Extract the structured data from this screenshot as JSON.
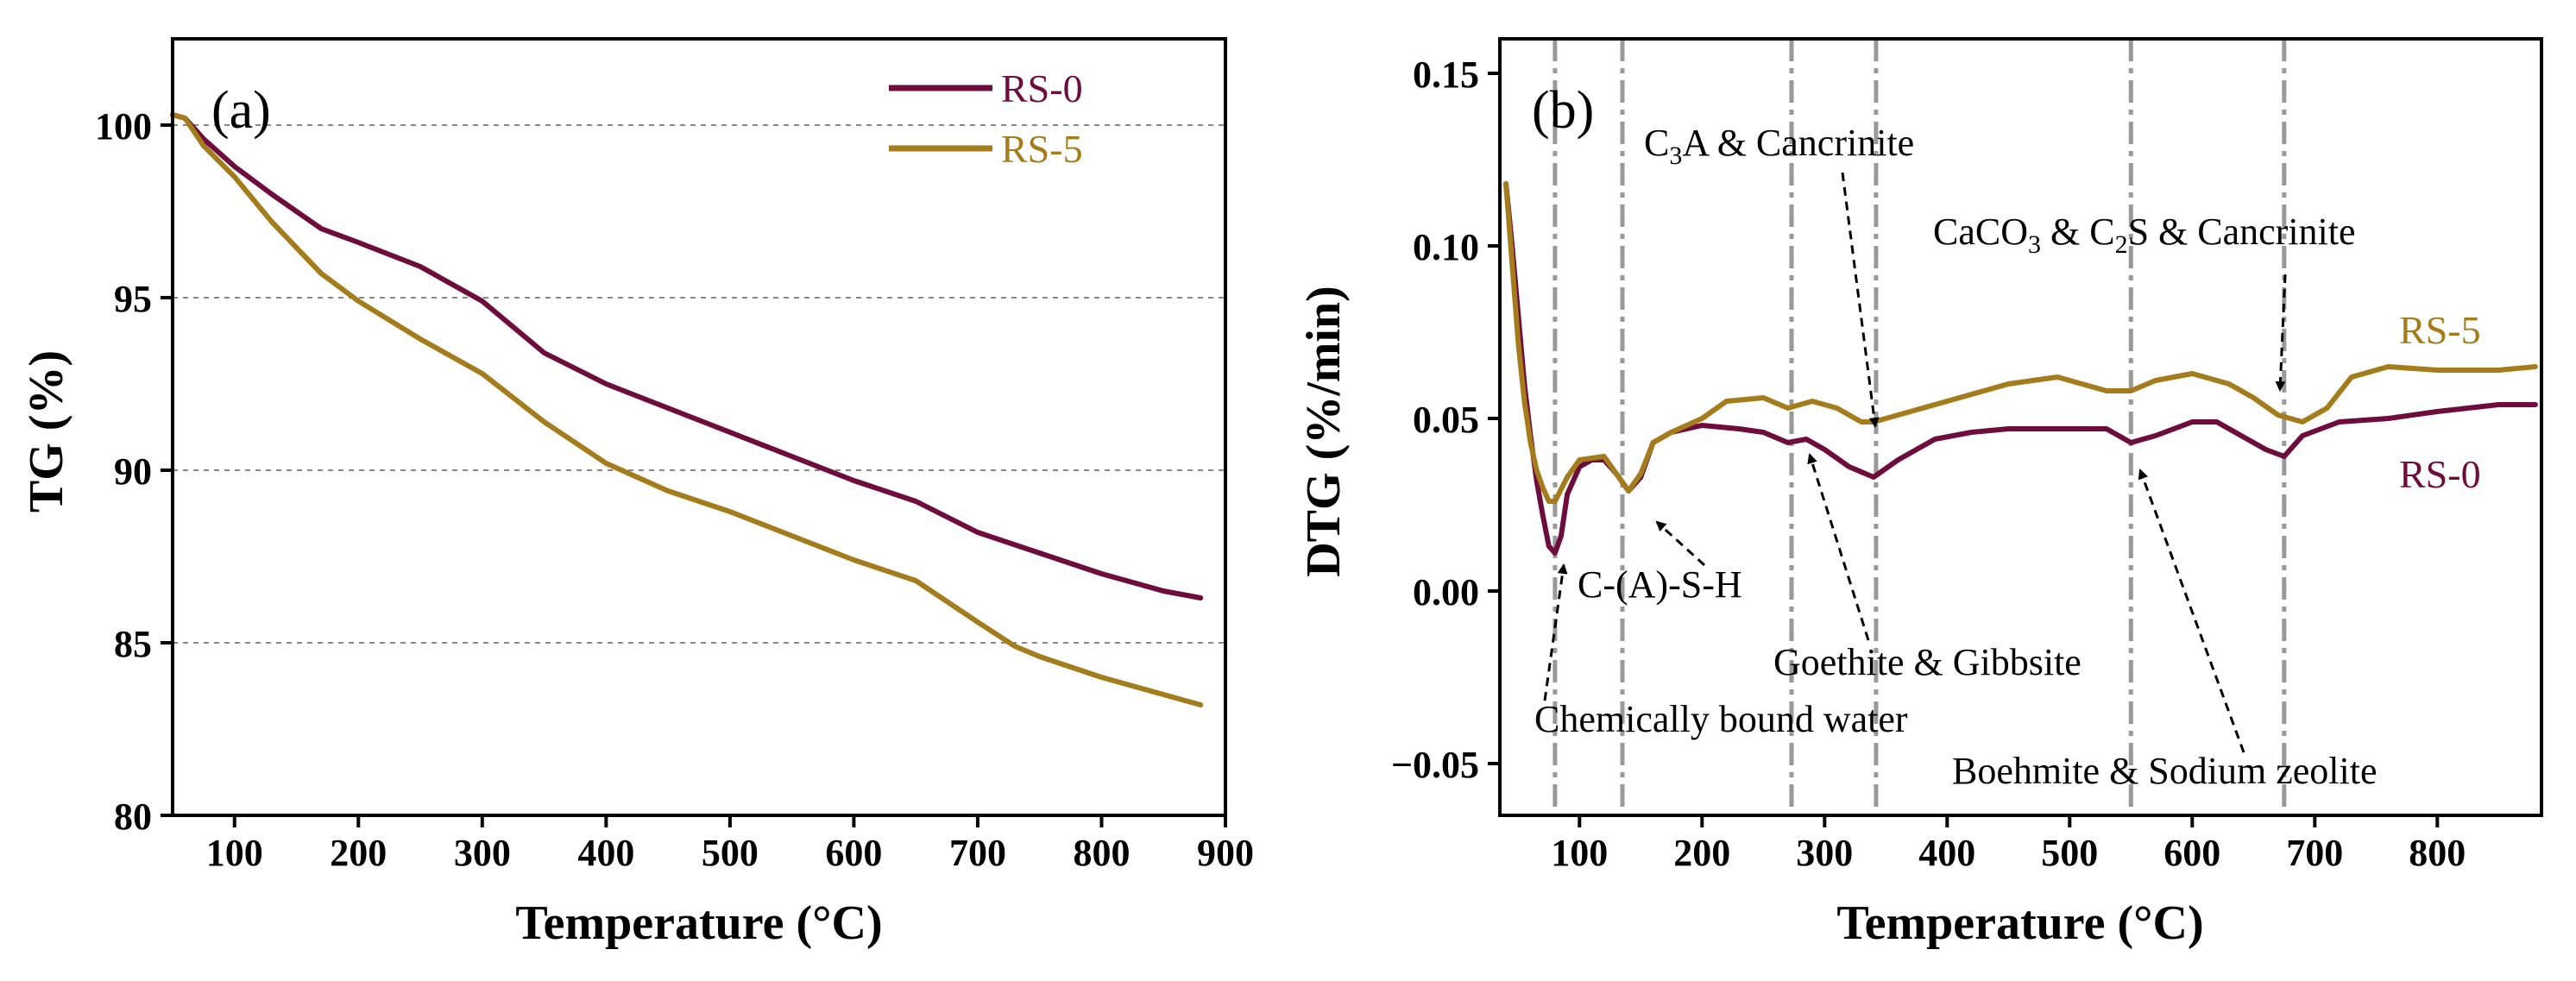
{
  "colors": {
    "rs0": "#6e0c3e",
    "rs5": "#a57c1b",
    "guide": "#999999",
    "grid": "#888888"
  },
  "chart_data": [
    {
      "type": "line",
      "panel_label": "(a)",
      "xlabel": "Temperature (°C)",
      "ylabel": "TG (%)",
      "xlim": [
        50,
        900
      ],
      "ylim": [
        80,
        102.5
      ],
      "xticks": [
        100,
        200,
        300,
        400,
        500,
        600,
        700,
        800,
        900
      ],
      "yticks": [
        80,
        85,
        90,
        95,
        100
      ],
      "ygrid": [
        85,
        90,
        95,
        100
      ],
      "legend": [
        "RS-0",
        "RS-5"
      ],
      "series": [
        {
          "name": "RS-0",
          "x": [
            50,
            60,
            75,
            100,
            130,
            170,
            200,
            250,
            300,
            350,
            400,
            450,
            500,
            550,
            600,
            650,
            700,
            750,
            800,
            850,
            880
          ],
          "y": [
            100.3,
            100.2,
            99.6,
            98.8,
            98.0,
            97.0,
            96.6,
            95.9,
            94.9,
            93.4,
            92.5,
            91.8,
            91.1,
            90.4,
            89.7,
            89.1,
            88.2,
            87.6,
            87.0,
            86.5,
            86.3
          ]
        },
        {
          "name": "RS-5",
          "x": [
            50,
            60,
            75,
            100,
            130,
            170,
            200,
            250,
            300,
            350,
            400,
            450,
            500,
            550,
            600,
            650,
            700,
            730,
            750,
            800,
            850,
            880
          ],
          "y": [
            100.3,
            100.2,
            99.4,
            98.5,
            97.2,
            95.7,
            94.9,
            93.8,
            92.8,
            91.4,
            90.2,
            89.4,
            88.8,
            88.1,
            87.4,
            86.8,
            85.6,
            84.9,
            84.6,
            84.0,
            83.5,
            83.2
          ]
        }
      ]
    },
    {
      "type": "line",
      "panel_label": "(b)",
      "xlabel": "Temperature (°C)",
      "ylabel": "DTG (%/min)",
      "xlim": [
        35,
        885
      ],
      "ylim": [
        -0.065,
        0.16
      ],
      "xticks": [
        100,
        200,
        300,
        400,
        500,
        600,
        700,
        800
      ],
      "yticks": [
        -0.05,
        0.0,
        0.05,
        0.1,
        0.15
      ],
      "ytick_labels": [
        "−0.05",
        "0.00",
        "0.05",
        "0.10",
        "0.15"
      ],
      "guides_x": [
        80,
        135,
        273,
        342,
        550,
        675
      ],
      "series": [
        {
          "name": "RS-0",
          "x": [
            40,
            45,
            50,
            55,
            60,
            65,
            70,
            75,
            80,
            85,
            90,
            100,
            110,
            120,
            130,
            140,
            150,
            160,
            175,
            200,
            230,
            250,
            270,
            285,
            300,
            320,
            340,
            360,
            390,
            420,
            450,
            480,
            510,
            530,
            550,
            570,
            600,
            620,
            640,
            660,
            675,
            690,
            720,
            760,
            800,
            850,
            880
          ],
          "y": [
            0.118,
            0.1,
            0.08,
            0.06,
            0.045,
            0.032,
            0.022,
            0.013,
            0.011,
            0.016,
            0.028,
            0.036,
            0.038,
            0.038,
            0.034,
            0.029,
            0.033,
            0.043,
            0.046,
            0.048,
            0.047,
            0.046,
            0.043,
            0.044,
            0.041,
            0.036,
            0.033,
            0.038,
            0.044,
            0.046,
            0.047,
            0.047,
            0.047,
            0.047,
            0.043,
            0.045,
            0.049,
            0.049,
            0.045,
            0.041,
            0.039,
            0.045,
            0.049,
            0.05,
            0.052,
            0.054,
            0.054
          ]
        },
        {
          "name": "RS-5",
          "x": [
            40,
            45,
            50,
            55,
            60,
            65,
            70,
            75,
            80,
            90,
            100,
            120,
            130,
            140,
            150,
            160,
            175,
            200,
            220,
            250,
            270,
            290,
            310,
            330,
            340,
            360,
            400,
            450,
            490,
            510,
            530,
            550,
            570,
            600,
            630,
            650,
            670,
            690,
            710,
            730,
            760,
            800,
            850,
            880
          ],
          "y": [
            0.118,
            0.095,
            0.072,
            0.055,
            0.043,
            0.035,
            0.03,
            0.026,
            0.026,
            0.033,
            0.038,
            0.039,
            0.034,
            0.029,
            0.034,
            0.043,
            0.046,
            0.05,
            0.055,
            0.056,
            0.053,
            0.055,
            0.053,
            0.049,
            0.049,
            0.051,
            0.055,
            0.06,
            0.062,
            0.06,
            0.058,
            0.058,
            0.061,
            0.063,
            0.06,
            0.056,
            0.051,
            0.049,
            0.053,
            0.062,
            0.065,
            0.064,
            0.064,
            0.065
          ]
        }
      ],
      "curve_labels": {
        "rs5": "RS-5",
        "rs0": "RS-0"
      },
      "annotations": {
        "c3a_pre": "C",
        "c3a_sub": "3",
        "c3a_post": "A & Cancrinite",
        "caco3_a": "CaCO",
        "caco3_sub1": "3",
        "caco3_b": " & C",
        "caco3_sub2": "2",
        "caco3_c": "S & Cancrinite",
        "csh": "C-(A)-S-H",
        "goethite": "Goethite  & Gibbsite",
        "chem": "Chemically bound water",
        "boehmite": "Boehmite & Sodium zeolite"
      }
    }
  ]
}
